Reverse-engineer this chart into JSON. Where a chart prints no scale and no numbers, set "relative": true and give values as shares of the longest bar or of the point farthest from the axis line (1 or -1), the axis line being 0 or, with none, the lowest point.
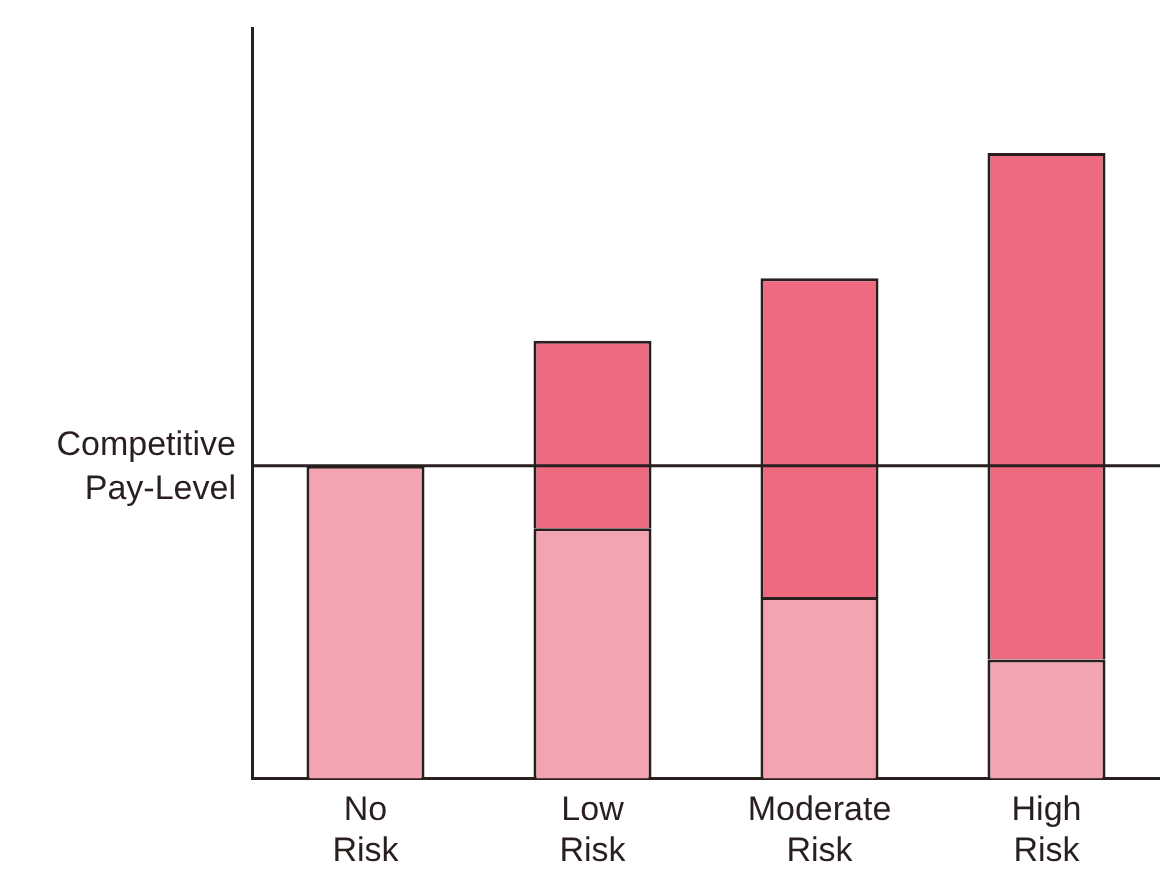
{
  "chart_data": {
    "type": "bar",
    "relative": true,
    "stacked": true,
    "categories": [
      "No Risk",
      "Low Risk",
      "Moderate Risk",
      "High Risk"
    ],
    "series": [
      {
        "color": "#f4a3b1",
        "values": [
          0.5,
          0.4,
          0.29,
          0.19
        ]
      },
      {
        "color": "#ee6a80",
        "values": [
          null,
          0.3,
          0.51,
          0.81
        ]
      }
    ],
    "ref_lines": [
      {
        "axis": "y",
        "value": 0.5,
        "label": "Competitive Pay-Level"
      }
    ],
    "grid": false,
    "legend": false
  }
}
